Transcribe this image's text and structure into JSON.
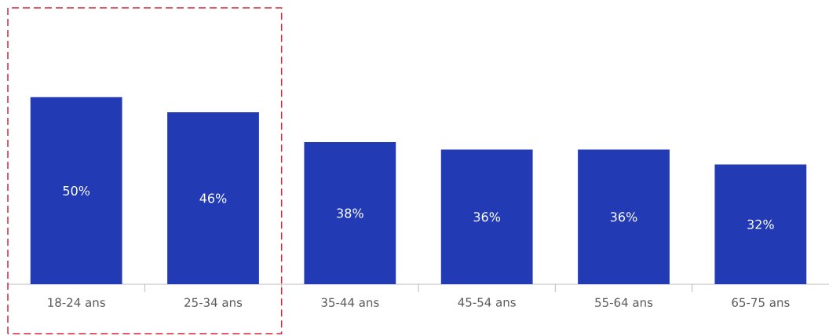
{
  "chart_data": {
    "type": "bar",
    "categories": [
      "18-24 ans",
      "25-34 ans",
      "35-44 ans",
      "45-54 ans",
      "55-64 ans",
      "65-75 ans"
    ],
    "values": [
      50,
      46,
      38,
      36,
      36,
      32
    ],
    "value_labels": [
      "50%",
      "46%",
      "38%",
      "36%",
      "36%",
      "32%"
    ],
    "color": "#223bb5"
  }
}
